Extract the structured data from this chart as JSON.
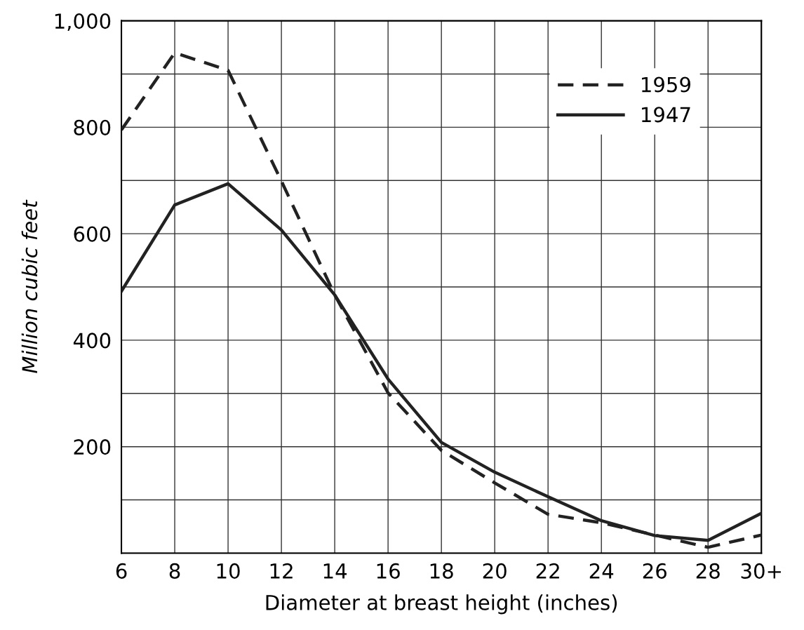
{
  "chart_data": {
    "type": "line",
    "xlabel": "Diameter at breast height (inches)",
    "ylabel": "Million cubic feet",
    "categories": [
      "6",
      "8",
      "10",
      "12",
      "14",
      "16",
      "18",
      "20",
      "22",
      "24",
      "26",
      "28",
      "30+"
    ],
    "series": [
      {
        "name": "1959",
        "color": "#222222",
        "line_style": "dashed",
        "values": [
          795,
          940,
          907,
          699,
          485,
          301,
          193,
          132,
          73,
          57,
          34,
          11,
          34
        ]
      },
      {
        "name": "1947",
        "color": "#222222",
        "line_style": "solid",
        "values": [
          492,
          654,
          694,
          607,
          485,
          327,
          208,
          152,
          106,
          61,
          33,
          24,
          75
        ]
      }
    ],
    "ylim": [
      0,
      1000
    ],
    "yticks": [
      {
        "value": 0,
        "label": null
      },
      {
        "value": 100,
        "label": null
      },
      200,
      {
        "value": 300,
        "label": null
      },
      400,
      {
        "value": 500,
        "label": null
      },
      600,
      {
        "value": 700,
        "label": null
      },
      800,
      {
        "value": 900,
        "label": null
      },
      {
        "value": 1000,
        "label": "1,000"
      }
    ],
    "grid": true,
    "legend": "top right",
    "marker": "none"
  }
}
